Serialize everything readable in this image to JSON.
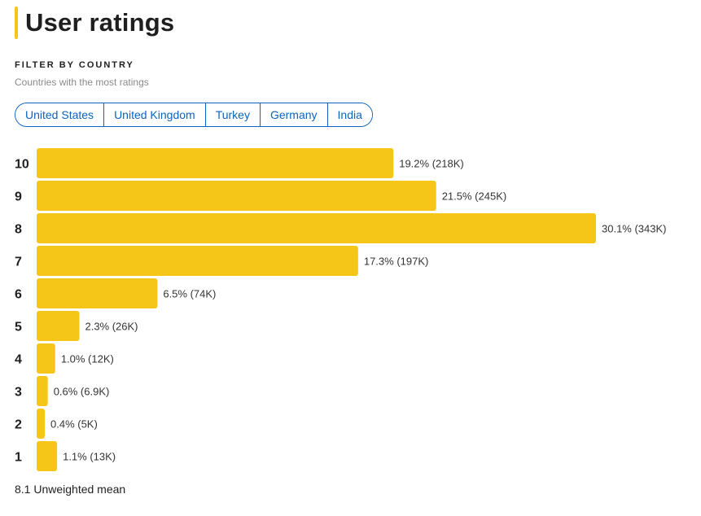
{
  "header": {
    "title": "User ratings"
  },
  "filter": {
    "heading": "FILTER BY COUNTRY",
    "subheading": "Countries with the most ratings",
    "countries": [
      "United States",
      "United Kingdom",
      "Turkey",
      "Germany",
      "India"
    ]
  },
  "colors": {
    "accent": "#f5c518",
    "chip": "#0e63be"
  },
  "chart_data": {
    "type": "bar",
    "orientation": "horizontal",
    "categories": [
      "10",
      "9",
      "8",
      "7",
      "6",
      "5",
      "4",
      "3",
      "2",
      "1"
    ],
    "values": [
      19.2,
      21.5,
      30.1,
      17.3,
      6.5,
      2.3,
      1.0,
      0.6,
      0.4,
      1.1
    ],
    "value_labels": [
      "19.2% (218K)",
      "21.5% (245K)",
      "30.1% (343K)",
      "17.3% (197K)",
      "6.5% (74K)",
      "2.3% (26K)",
      "1.0% (12K)",
      "0.6% (6.9K)",
      "0.4% (5K)",
      "1.1% (13K)"
    ],
    "grid": false
  },
  "summary": {
    "mean_text": "8.1 Unweighted mean"
  }
}
